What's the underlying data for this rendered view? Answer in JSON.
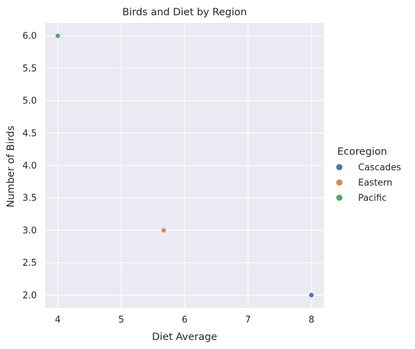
{
  "chart_data": {
    "type": "scatter",
    "title": "Birds and Diet by Region",
    "xlabel": "Diet Average",
    "ylabel": "Number of Birds",
    "xlim": [
      3.8,
      8.2
    ],
    "ylim": [
      1.8,
      6.2
    ],
    "xticks": [
      4,
      5,
      6,
      7,
      8
    ],
    "xtick_labels": [
      "4",
      "5",
      "6",
      "7",
      "8"
    ],
    "yticks": [
      2.0,
      2.5,
      3.0,
      3.5,
      4.0,
      4.5,
      5.0,
      5.5,
      6.0
    ],
    "ytick_labels": [
      "2.0",
      "2.5",
      "3.0",
      "3.5",
      "4.0",
      "4.5",
      "5.0",
      "5.5",
      "6.0"
    ],
    "grid": true,
    "legend": {
      "title": "Ecoregion",
      "placement": "right"
    },
    "series": [
      {
        "name": "Cascades",
        "color": "#4c72b0",
        "points": [
          {
            "x": 8.0,
            "y": 2.0
          }
        ]
      },
      {
        "name": "Eastern",
        "color": "#dd8452",
        "points": [
          {
            "x": 5.67,
            "y": 3.0
          }
        ]
      },
      {
        "name": "Pacific",
        "color": "#55a868",
        "points": [
          {
            "x": 4.0,
            "y": 6.0
          }
        ]
      }
    ],
    "colors": {
      "plot_background": "#eaeaf2",
      "grid": "#ffffff",
      "text": "#262626"
    }
  }
}
